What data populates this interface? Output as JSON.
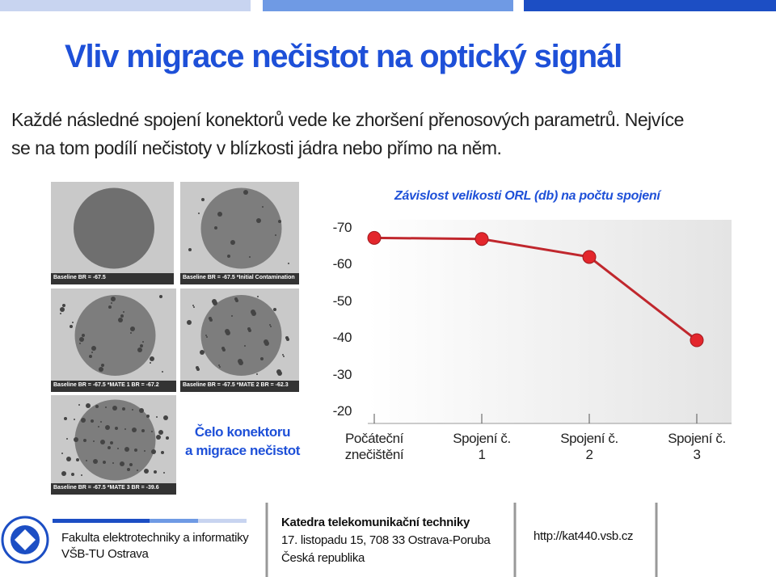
{
  "title": "Vliv migrace nečistot na optický signál",
  "body_lines": [
    "Každé následné spojení konektorů vede ke zhoršení přenosových parametrů. Nejvíce",
    "se na tom podílí nečistoty v blízkosti jádra nebo přímo na něm."
  ],
  "images": [
    {
      "caption": "Baseline BR = -67.5"
    },
    {
      "caption": "Baseline BR = -67.5 *Initial Contamination"
    },
    {
      "caption": "Baseline BR = -67.5 *MATE 1 BR = -67.2"
    },
    {
      "caption": "Baseline BR = -67.5 *MATE 2 BR = -62.3"
    },
    {
      "caption": "Baseline BR = -67.5 *MATE 3 BR = -39.6"
    }
  ],
  "image_caption": [
    "Čelo konektoru",
    "a migrace nečistot"
  ],
  "chart_data": {
    "type": "line",
    "title": "Závislost velikosti ORL (db) na počtu spojení",
    "categories": [
      "Počáteční znečištění",
      "Spojení č. 1",
      "Spojení č. 2",
      "Spojení č. 3"
    ],
    "series": [
      {
        "name": "ORL",
        "color": "#c0272d",
        "values": [
          -67.5,
          -67.2,
          -62.3,
          -39.6
        ]
      }
    ],
    "ylim": [
      -70,
      -20
    ],
    "yticks": [
      -70,
      -60,
      -50,
      -40,
      -30,
      -20
    ],
    "grid": false
  },
  "footer": {
    "faculty": "Fakulta elektrotechniky a informatiky",
    "university": "VŠB-TU Ostrava",
    "department": "Katedra telekomunikační techniky",
    "address": "17. listopadu 15, 708 33 Ostrava-Poruba",
    "country": "Česká republika",
    "url": "http://kat440.vsb.cz"
  }
}
